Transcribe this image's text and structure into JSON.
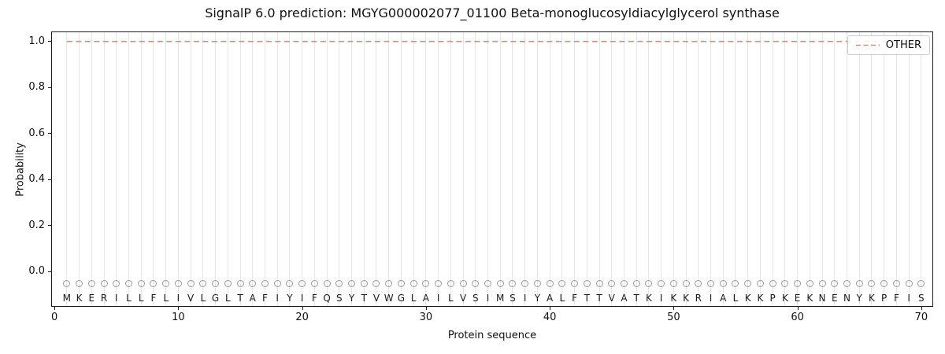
{
  "chart_data": {
    "type": "line",
    "title": "SignalP 6.0 prediction: MGYG000002077_01100 Beta-monoglucosyldiacylglycerol synthase",
    "xlabel": "Protein sequence",
    "ylabel": "Probability",
    "xlim": [
      -0.2,
      70.9
    ],
    "ylim": [
      -0.15,
      1.04
    ],
    "xticks": [
      0,
      10,
      20,
      30,
      40,
      50,
      60,
      70
    ],
    "yticks": [
      "0.0",
      "0.2",
      "0.4",
      "0.6",
      "0.8",
      "1.0"
    ],
    "grid": "vertical-gridline-per-residue",
    "legend_position": "upper right",
    "sequence": [
      "M",
      "K",
      "E",
      "R",
      "I",
      "L",
      "L",
      "F",
      "L",
      "I",
      "V",
      "L",
      "G",
      "L",
      "T",
      "A",
      "F",
      "I",
      "Y",
      "I",
      "F",
      "Q",
      "S",
      "Y",
      "T",
      "V",
      "W",
      "G",
      "L",
      "A",
      "I",
      "L",
      "V",
      "S",
      "I",
      "M",
      "S",
      "I",
      "Y",
      "A",
      "L",
      "F",
      "T",
      "T",
      "V",
      "A",
      "T",
      "K",
      "I",
      "K",
      "K",
      "R",
      "I",
      "A",
      "L",
      "K",
      "K",
      "P",
      "K",
      "E",
      "K",
      "N",
      "E",
      "N",
      "Y",
      "K",
      "P",
      "F",
      "I",
      "S"
    ],
    "series": [
      {
        "name": "OTHER",
        "style": "dashed",
        "color": "#f08080",
        "x_range": [
          1,
          70
        ],
        "y_constant": 1.0
      }
    ],
    "marker_y": -0.054,
    "letter_y": -0.115,
    "colors": {
      "grid": "#e4e4e4",
      "marker": "#9a9a9a",
      "spine": "#1a1a1a",
      "text": "#111111"
    }
  }
}
